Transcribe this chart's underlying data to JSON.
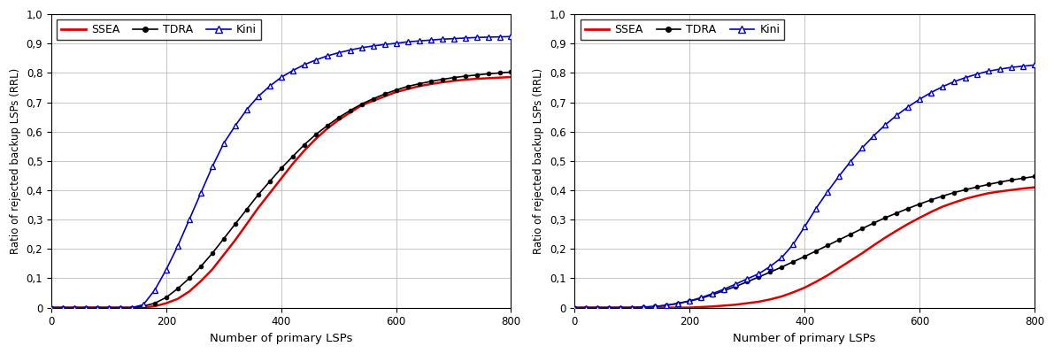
{
  "xlabel": "Number of primary LSPs",
  "ylabel": "Ratio of rejected backup LSPs (RRL)",
  "xlim": [
    0,
    800
  ],
  "ylim": [
    0,
    1.0
  ],
  "yticks": [
    0,
    0.1,
    0.2,
    0.3,
    0.4,
    0.5,
    0.6,
    0.7,
    0.8,
    0.9,
    1
  ],
  "xticks": [
    0,
    200,
    400,
    600,
    800
  ],
  "colors": {
    "SSEA": "#dd0000",
    "TDRA": "#000000",
    "Kini": "#0000cc"
  },
  "left_chart": {
    "SSEA": {
      "x": [
        0,
        20,
        40,
        60,
        80,
        100,
        120,
        140,
        160,
        180,
        200,
        220,
        240,
        260,
        280,
        300,
        320,
        340,
        360,
        380,
        400,
        420,
        440,
        460,
        480,
        500,
        520,
        540,
        560,
        580,
        600,
        620,
        640,
        660,
        680,
        700,
        720,
        740,
        760,
        780,
        800
      ],
      "y": [
        0,
        0,
        0,
        0,
        0,
        0,
        0,
        0,
        0,
        0.005,
        0.015,
        0.03,
        0.055,
        0.09,
        0.13,
        0.18,
        0.23,
        0.285,
        0.34,
        0.39,
        0.44,
        0.49,
        0.535,
        0.575,
        0.61,
        0.64,
        0.665,
        0.69,
        0.705,
        0.72,
        0.735,
        0.745,
        0.755,
        0.762,
        0.768,
        0.773,
        0.777,
        0.78,
        0.782,
        0.784,
        0.786
      ]
    },
    "TDRA": {
      "x": [
        0,
        20,
        40,
        60,
        80,
        100,
        120,
        140,
        160,
        180,
        200,
        220,
        240,
        260,
        280,
        300,
        320,
        340,
        360,
        380,
        400,
        420,
        440,
        460,
        480,
        500,
        520,
        540,
        560,
        580,
        600,
        620,
        640,
        660,
        680,
        700,
        720,
        740,
        760,
        780,
        800
      ],
      "y": [
        0,
        0,
        0,
        0,
        0,
        0,
        0,
        0,
        0.005,
        0.015,
        0.035,
        0.065,
        0.1,
        0.14,
        0.185,
        0.235,
        0.285,
        0.335,
        0.385,
        0.43,
        0.475,
        0.515,
        0.555,
        0.59,
        0.62,
        0.648,
        0.672,
        0.694,
        0.712,
        0.728,
        0.742,
        0.754,
        0.763,
        0.771,
        0.778,
        0.784,
        0.789,
        0.793,
        0.797,
        0.8,
        0.803
      ]
    },
    "Kini": {
      "x": [
        0,
        20,
        40,
        60,
        80,
        100,
        120,
        140,
        160,
        180,
        200,
        220,
        240,
        260,
        280,
        300,
        320,
        340,
        360,
        380,
        400,
        420,
        440,
        460,
        480,
        500,
        520,
        540,
        560,
        580,
        600,
        620,
        640,
        660,
        680,
        700,
        720,
        740,
        760,
        780,
        800
      ],
      "y": [
        0,
        0,
        0,
        0,
        0,
        0,
        0,
        0,
        0.01,
        0.06,
        0.13,
        0.21,
        0.3,
        0.39,
        0.48,
        0.56,
        0.62,
        0.675,
        0.72,
        0.755,
        0.785,
        0.808,
        0.828,
        0.844,
        0.858,
        0.869,
        0.878,
        0.886,
        0.892,
        0.897,
        0.901,
        0.906,
        0.909,
        0.912,
        0.915,
        0.917,
        0.919,
        0.921,
        0.922,
        0.923,
        0.924
      ]
    }
  },
  "right_chart": {
    "SSEA": {
      "x": [
        0,
        20,
        40,
        60,
        80,
        100,
        120,
        140,
        160,
        180,
        200,
        220,
        240,
        260,
        280,
        300,
        320,
        340,
        360,
        380,
        400,
        420,
        440,
        460,
        480,
        500,
        520,
        540,
        560,
        580,
        600,
        620,
        640,
        660,
        680,
        700,
        720,
        740,
        760,
        780,
        800
      ],
      "y": [
        0,
        0,
        0,
        0,
        0,
        0,
        0,
        0,
        0,
        0,
        0,
        0.002,
        0.004,
        0.007,
        0.01,
        0.015,
        0.02,
        0.028,
        0.038,
        0.052,
        0.068,
        0.088,
        0.11,
        0.135,
        0.16,
        0.185,
        0.212,
        0.238,
        0.262,
        0.285,
        0.306,
        0.326,
        0.344,
        0.358,
        0.371,
        0.381,
        0.39,
        0.396,
        0.401,
        0.406,
        0.41
      ]
    },
    "TDRA": {
      "x": [
        0,
        20,
        40,
        60,
        80,
        100,
        120,
        140,
        160,
        180,
        200,
        220,
        240,
        260,
        280,
        300,
        320,
        340,
        360,
        380,
        400,
        420,
        440,
        460,
        480,
        500,
        520,
        540,
        560,
        580,
        600,
        620,
        640,
        660,
        680,
        700,
        720,
        740,
        760,
        780,
        800
      ],
      "y": [
        0,
        0,
        0,
        0,
        0,
        0,
        0.002,
        0.004,
        0.008,
        0.014,
        0.022,
        0.032,
        0.044,
        0.058,
        0.072,
        0.088,
        0.104,
        0.121,
        0.138,
        0.156,
        0.174,
        0.193,
        0.212,
        0.231,
        0.25,
        0.269,
        0.288,
        0.306,
        0.322,
        0.338,
        0.353,
        0.367,
        0.38,
        0.392,
        0.402,
        0.411,
        0.42,
        0.428,
        0.435,
        0.441,
        0.447
      ]
    },
    "Kini": {
      "x": [
        0,
        20,
        40,
        60,
        80,
        100,
        120,
        140,
        160,
        180,
        200,
        220,
        240,
        260,
        280,
        300,
        320,
        340,
        360,
        380,
        400,
        420,
        440,
        460,
        480,
        500,
        520,
        540,
        560,
        580,
        600,
        620,
        640,
        660,
        680,
        700,
        720,
        740,
        760,
        780,
        800
      ],
      "y": [
        0,
        0,
        0,
        0,
        0,
        0,
        0.002,
        0.004,
        0.008,
        0.015,
        0.023,
        0.034,
        0.048,
        0.063,
        0.08,
        0.098,
        0.115,
        0.14,
        0.17,
        0.215,
        0.275,
        0.338,
        0.395,
        0.448,
        0.498,
        0.544,
        0.585,
        0.622,
        0.655,
        0.684,
        0.71,
        0.733,
        0.753,
        0.77,
        0.784,
        0.796,
        0.806,
        0.813,
        0.819,
        0.823,
        0.827
      ]
    }
  }
}
